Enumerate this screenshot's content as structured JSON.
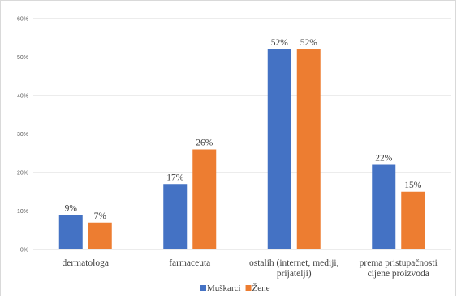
{
  "chart_data": {
    "type": "bar",
    "categories": [
      [
        "dermatologa"
      ],
      [
        "farmaceuta"
      ],
      [
        "ostalih (internet, mediji,",
        "prijatelji)"
      ],
      [
        "prema pristupačnosti",
        "cijene proizvoda"
      ]
    ],
    "series": [
      {
        "name": "Muškarci",
        "values": [
          9,
          17,
          52,
          22
        ],
        "labels": [
          "9%",
          "17%",
          "52%",
          "22%"
        ],
        "color": "#4472c4"
      },
      {
        "name": "Žene",
        "values": [
          7,
          26,
          52,
          15
        ],
        "labels": [
          "7%",
          "26%",
          "52%",
          "15%"
        ],
        "color": "#ed7d31"
      }
    ],
    "ylim": [
      0,
      60
    ],
    "yticks": [
      0,
      10,
      20,
      30,
      40,
      50,
      60
    ],
    "ytick_labels": [
      "0%",
      "10%",
      "20%",
      "30%",
      "40%",
      "50%",
      "60%"
    ],
    "grid": true,
    "gridline_color": "#d9d9d9",
    "legend_position": "bottom"
  }
}
